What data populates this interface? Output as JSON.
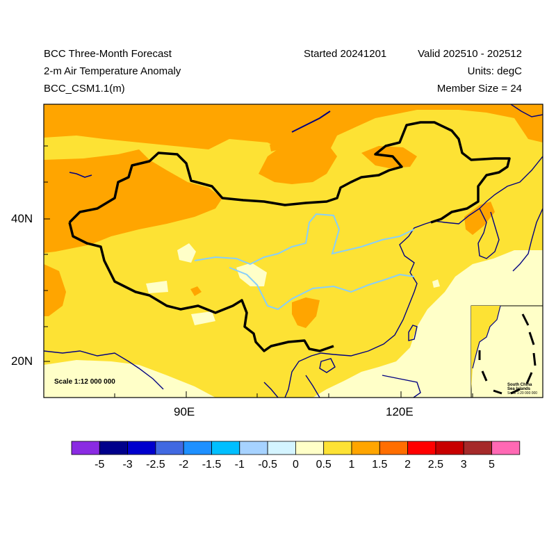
{
  "header": {
    "title": "BCC Three-Month Forecast",
    "variable": "2-m Air Temperature Anomaly",
    "model": "BCC_CSM1.1(m)",
    "started": "Started 20241201",
    "valid": "Valid 202510 - 202512",
    "units": "Units: degC",
    "member_size": "Member Size = 24"
  },
  "map": {
    "lon_labels": [
      "90E",
      "120E"
    ],
    "lat_labels": [
      "40N",
      "20N"
    ],
    "scale_main": "Scale 1:12 000 000",
    "inset_title_1": "South China",
    "inset_title_2": "Sea Islands",
    "inset_scale": "Scale 1:20 000 000"
  },
  "colorbar": {
    "labels": [
      "-5",
      "-3",
      "-2.5",
      "-2",
      "-1.5",
      "-1",
      "-0.5",
      "0",
      "0.5",
      "1",
      "1.5",
      "2",
      "2.5",
      "3",
      "5"
    ],
    "colors": [
      "#8a2be2",
      "#00008b",
      "#0000cd",
      "#4169e1",
      "#1e90ff",
      "#00bfff",
      "#a6d2ff",
      "#d4f4ff",
      "#ffffc8",
      "#fde234",
      "#ffa500",
      "#ff6e00",
      "#ff0000",
      "#c80000",
      "#a52a2a",
      "#ff69b4"
    ]
  },
  "colors": {
    "band_0_0_5": "#ffffc8",
    "band_0_5_1": "#fde234",
    "band_1_1_5": "#ffa500",
    "coastline": "#000080",
    "river": "#87cefa",
    "border": "#000000"
  }
}
